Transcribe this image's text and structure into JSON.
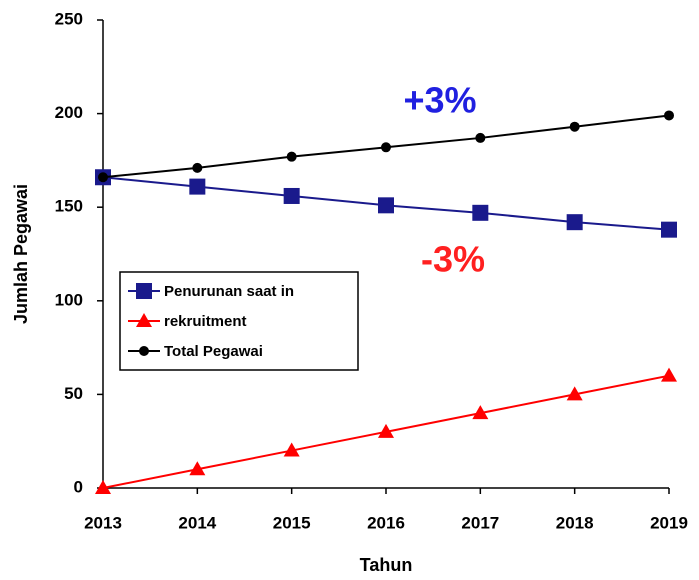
{
  "chart_data": {
    "type": "line",
    "x": [
      2013,
      2014,
      2015,
      2016,
      2017,
      2018,
      2019
    ],
    "xlim": [
      2013,
      2019
    ],
    "xticks": [
      2013,
      2014,
      2015,
      2016,
      2017,
      2018,
      2019
    ],
    "ylim": [
      0,
      250
    ],
    "yticks": [
      0,
      50,
      100,
      150,
      200,
      250
    ],
    "xlabel": "Tahun",
    "ylabel": "Jumlah Pegawai",
    "grid": false,
    "series": [
      {
        "name": "Penurunan saat in",
        "color": "#1a1a8c",
        "marker": "square",
        "values": [
          166,
          161,
          156,
          151,
          147,
          142,
          138
        ]
      },
      {
        "name": "rekruitment",
        "color": "#ff0000",
        "marker": "triangle",
        "values": [
          0,
          10,
          20,
          30,
          40,
          50,
          60
        ]
      },
      {
        "name": "Total Pegawai",
        "color": "#000000",
        "marker": "circle",
        "values": [
          166,
          171,
          177,
          182,
          187,
          193,
          199
        ]
      }
    ],
    "annotations": [
      {
        "text": "+3%",
        "color": "#2020e0"
      },
      {
        "text": "-3%",
        "color": "#ff2020"
      }
    ]
  }
}
